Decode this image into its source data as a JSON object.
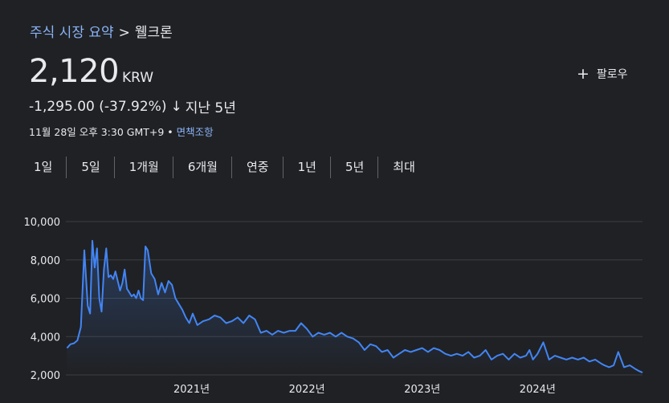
{
  "breadcrumb": {
    "summary": "주식 시장 요약",
    "separator": ">",
    "company": "웰크론"
  },
  "price": {
    "value": "2,120",
    "currency": "KRW"
  },
  "follow": {
    "label": "팔로우"
  },
  "change": {
    "amount": "-1,295.00 (-37.92%)",
    "arrow": "↓",
    "period": "지난 5년"
  },
  "meta": {
    "timestamp": "11월 28일 오후 3:30 GMT+9",
    "bullet": "•",
    "disclaimer": "면책조항"
  },
  "ranges": [
    {
      "label": "1일"
    },
    {
      "label": "5일"
    },
    {
      "label": "1개월"
    },
    {
      "label": "6개월"
    },
    {
      "label": "연중"
    },
    {
      "label": "1년"
    },
    {
      "label": "5년"
    },
    {
      "label": "최대"
    }
  ],
  "colors": {
    "line": "#4285f4",
    "link": "#8ab4f8",
    "background": "#202124",
    "grid": "#3c4043"
  },
  "chart_data": {
    "type": "area",
    "ylim": [
      2000,
      10000
    ],
    "y_ticks": [
      2000,
      4000,
      6000,
      8000,
      10000
    ],
    "y_tick_labels": [
      "2,000",
      "4,000",
      "6,000",
      "8,000",
      "10,000"
    ],
    "x_ticks": [
      2021,
      2022,
      2023,
      2024
    ],
    "x_tick_labels": [
      "2021년",
      "2022년",
      "2023년",
      "2024년"
    ],
    "xlim": [
      2019.91,
      2024.91
    ],
    "grid": true,
    "series": [
      {
        "x": [
          2019.92,
          2019.95,
          2019.98,
          2020.01,
          2020.04,
          2020.07,
          2020.1,
          2020.12,
          2020.14,
          2020.16,
          2020.18,
          2020.2,
          2020.22,
          2020.24,
          2020.26,
          2020.28,
          2020.3,
          2020.32,
          2020.34,
          2020.36,
          2020.38,
          2020.4,
          2020.42,
          2020.44,
          2020.46,
          2020.48,
          2020.5,
          2020.52,
          2020.54,
          2020.56,
          2020.58,
          2020.6,
          2020.62,
          2020.65,
          2020.68,
          2020.71,
          2020.74,
          2020.77,
          2020.8,
          2020.83,
          2020.86,
          2020.89,
          2020.92,
          2020.95,
          2020.98,
          2021.01,
          2021.05,
          2021.1,
          2021.15,
          2021.2,
          2021.25,
          2021.3,
          2021.35,
          2021.4,
          2021.45,
          2021.5,
          2021.55,
          2021.6,
          2021.65,
          2021.7,
          2021.75,
          2021.8,
          2021.85,
          2021.9,
          2021.95,
          2022.0,
          2022.05,
          2022.1,
          2022.15,
          2022.2,
          2022.25,
          2022.3,
          2022.35,
          2022.4,
          2022.45,
          2022.5,
          2022.55,
          2022.6,
          2022.65,
          2022.7,
          2022.75,
          2022.8,
          2022.85,
          2022.9,
          2022.95,
          2023.0,
          2023.05,
          2023.1,
          2023.15,
          2023.2,
          2023.25,
          2023.3,
          2023.35,
          2023.4,
          2023.45,
          2023.5,
          2023.55,
          2023.6,
          2023.65,
          2023.7,
          2023.75,
          2023.8,
          2023.85,
          2023.9,
          2023.93,
          2023.96,
          2024.0,
          2024.05,
          2024.1,
          2024.15,
          2024.2,
          2024.25,
          2024.3,
          2024.35,
          2024.4,
          2024.45,
          2024.5,
          2024.55,
          2024.58,
          2024.62,
          2024.66,
          2024.7,
          2024.75,
          2024.8,
          2024.85,
          2024.88,
          2024.91
        ],
        "y": [
          3400,
          3600,
          3650,
          3800,
          4500,
          8500,
          5600,
          5200,
          9000,
          7600,
          8600,
          6000,
          5300,
          7500,
          8600,
          7100,
          7200,
          7000,
          7400,
          6900,
          6400,
          6800,
          7500,
          6500,
          6300,
          6100,
          6200,
          6000,
          6400,
          6000,
          5900,
          8700,
          8500,
          7300,
          7000,
          6200,
          6800,
          6300,
          6900,
          6700,
          6000,
          5700,
          5400,
          5000,
          4700,
          5200,
          4600,
          4800,
          4900,
          5100,
          5000,
          4700,
          4800,
          5000,
          4700,
          5100,
          4900,
          4200,
          4300,
          4100,
          4300,
          4200,
          4300,
          4300,
          4700,
          4400,
          4000,
          4200,
          4100,
          4200,
          4000,
          4200,
          4000,
          3900,
          3700,
          3300,
          3600,
          3500,
          3200,
          3300,
          2900,
          3100,
          3300,
          3200,
          3300,
          3400,
          3200,
          3400,
          3300,
          3100,
          3000,
          3100,
          3000,
          3200,
          2900,
          3000,
          3300,
          2800,
          3000,
          3100,
          2800,
          3100,
          2900,
          3000,
          3300,
          2800,
          3100,
          3700,
          2800,
          3000,
          2900,
          2800,
          2900,
          2800,
          2900,
          2700,
          2800,
          2600,
          2500,
          2400,
          2500,
          3200,
          2400,
          2500,
          2300,
          2200,
          2120
        ]
      }
    ]
  }
}
